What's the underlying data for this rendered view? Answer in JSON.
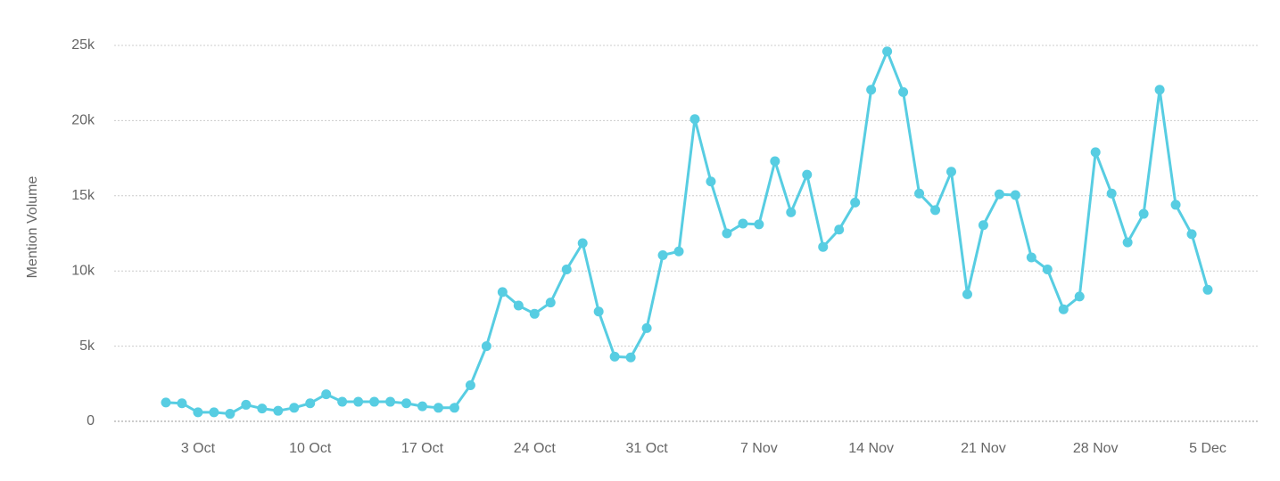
{
  "chart_data": {
    "type": "line",
    "y_label": "Mention Volume",
    "color": "#57cde2",
    "grid": true,
    "categories": [
      null,
      null,
      "3 Oct",
      null,
      null,
      null,
      null,
      null,
      null,
      "10 Oct",
      null,
      null,
      null,
      null,
      null,
      null,
      "17 Oct",
      null,
      null,
      null,
      null,
      null,
      null,
      "24 Oct",
      null,
      null,
      null,
      null,
      null,
      null,
      "31 Oct",
      null,
      null,
      null,
      null,
      null,
      null,
      "7 Nov",
      null,
      null,
      null,
      null,
      null,
      null,
      "14 Nov",
      null,
      null,
      null,
      null,
      null,
      null,
      "21 Nov",
      null,
      null,
      null,
      null,
      null,
      null,
      "28 Nov",
      null,
      null,
      null,
      null,
      null,
      null,
      "5 Dec"
    ],
    "values": [
      1250,
      1200,
      600,
      600,
      500,
      1100,
      850,
      700,
      900,
      1200,
      1800,
      1300,
      1300,
      1300,
      1300,
      1200,
      1000,
      900,
      900,
      2400,
      5000,
      8600,
      7700,
      7150,
      7900,
      10100,
      11850,
      7300,
      4300,
      4250,
      6200,
      11050,
      11300,
      20100,
      15950,
      12500,
      13150,
      13100,
      17300,
      13900,
      16400,
      11600,
      12750,
      14550,
      22050,
      24600,
      21900,
      15150,
      14050,
      16600,
      8450,
      13050,
      15100,
      15050,
      10900,
      10100,
      7450,
      8300,
      17900,
      15150,
      11900,
      13800,
      22050,
      14400,
      12450,
      8750
    ],
    "ylim": [
      0,
      25000
    ],
    "yticks": [
      {
        "value": 0,
        "label": "0"
      },
      {
        "value": 5000,
        "label": "5k"
      },
      {
        "value": 10000,
        "label": "10k"
      },
      {
        "value": 15000,
        "label": "15k"
      },
      {
        "value": 20000,
        "label": "20k"
      },
      {
        "value": 25000,
        "label": "25k"
      }
    ]
  }
}
